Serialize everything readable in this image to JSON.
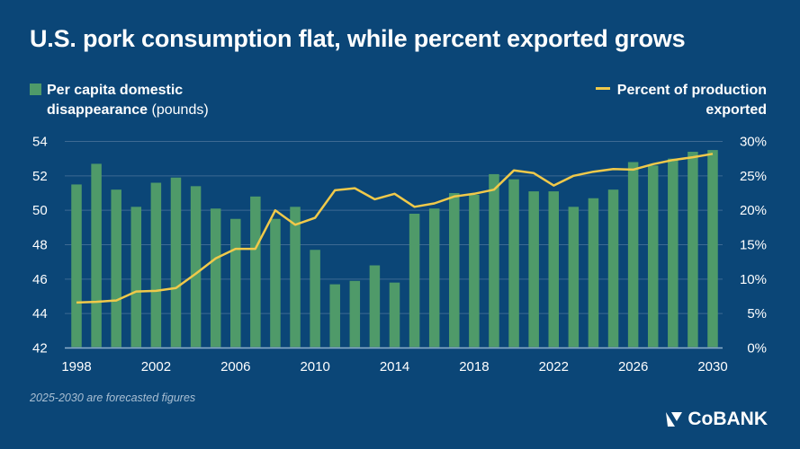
{
  "title": "U.S. pork consumption flat, while percent exported grows",
  "legend": {
    "bars_line1": "Per capita domestic",
    "bars_line2_bold": "disappearance",
    "bars_line2_unit": "(pounds)",
    "line_line1": "Percent of production",
    "line_line2": "exported"
  },
  "note": "2025-2030 are forecasted figures",
  "logo": "CoBANK",
  "colors": {
    "background": "#0b4677",
    "bars": "#4f9a69",
    "line": "#f0c94a",
    "grid": "#3d6a93"
  },
  "chart_data": {
    "type": "bar+line",
    "x": [
      1998,
      1999,
      2000,
      2001,
      2002,
      2003,
      2004,
      2005,
      2006,
      2007,
      2008,
      2009,
      2010,
      2011,
      2012,
      2013,
      2014,
      2015,
      2016,
      2017,
      2018,
      2019,
      2020,
      2021,
      2022,
      2023,
      2024,
      2025,
      2026,
      2027,
      2028,
      2029,
      2030
    ],
    "x_ticks": [
      "1998",
      "2002",
      "2006",
      "2010",
      "2014",
      "2018",
      "2022",
      "2026",
      "2030"
    ],
    "series": [
      {
        "name": "Per capita domestic disappearance (pounds)",
        "type": "bar",
        "axis": "left",
        "values": [
          51.5,
          52.7,
          51.2,
          50.2,
          51.6,
          51.9,
          51.4,
          50.1,
          49.5,
          50.8,
          49.5,
          50.2,
          47.7,
          45.7,
          45.9,
          46.8,
          45.8,
          49.8,
          50.1,
          51.0,
          50.9,
          52.1,
          51.8,
          51.1,
          51.1,
          50.2,
          50.7,
          51.2,
          52.8,
          52.6,
          53.0,
          53.4,
          53.5
        ]
      },
      {
        "name": "Percent of production exported",
        "type": "line",
        "axis": "right",
        "values": [
          6.6,
          6.7,
          6.9,
          8.2,
          8.3,
          8.7,
          10.8,
          13.0,
          14.4,
          14.4,
          20.0,
          17.9,
          18.9,
          22.9,
          23.2,
          21.6,
          22.4,
          20.5,
          21.0,
          22.0,
          22.4,
          23.0,
          25.8,
          25.4,
          23.6,
          25.0,
          25.6,
          26.0,
          25.9,
          26.7,
          27.3,
          27.7,
          28.2
        ]
      }
    ],
    "y_left": {
      "lim": [
        42,
        54
      ],
      "ticks": [
        "42",
        "44",
        "46",
        "48",
        "50",
        "52",
        "54"
      ]
    },
    "y_right": {
      "lim": [
        0,
        30
      ],
      "ticks": [
        "0%",
        "5%",
        "10%",
        "15%",
        "20%",
        "25%",
        "30%"
      ]
    },
    "grid": true,
    "legend_placement": "top"
  }
}
